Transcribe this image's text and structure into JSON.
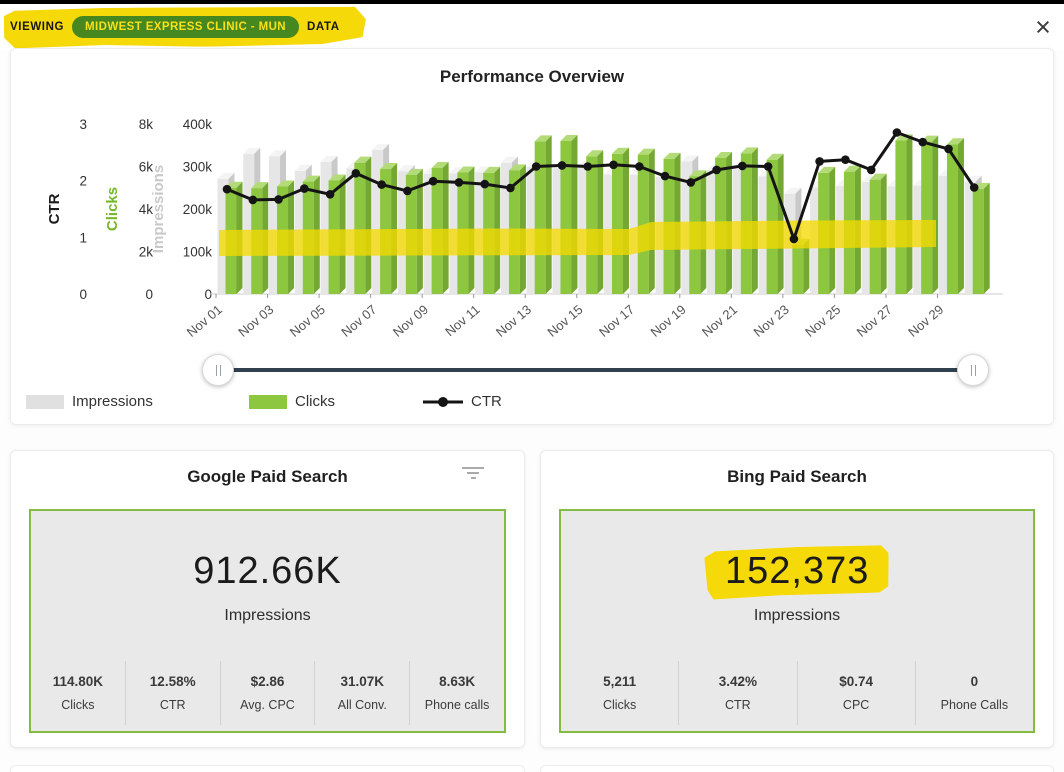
{
  "header": {
    "viewing_label": "VIEWING",
    "client_name": "MIDWEST EXPRESS CLINIC - MUN",
    "data_label": "DATA",
    "close_glyph": "×"
  },
  "colors": {
    "highlight_yellow": "#f6d908",
    "pill_green": "#47871f",
    "pill_text_yellow": "#f6e11b",
    "accent_green": "#8dc63f",
    "bar_gray": "#e6e6e6",
    "ctr_line": "#141414",
    "slider_track": "#31404e",
    "panel_border_green": "#84bb41",
    "panel_bg": "#e9e9e9"
  },
  "chart_data": {
    "type": "combo-bar-line-3d",
    "title": "Performance Overview",
    "x": [
      "Nov 01",
      "Nov 02",
      "Nov 03",
      "Nov 04",
      "Nov 05",
      "Nov 06",
      "Nov 07",
      "Nov 08",
      "Nov 09",
      "Nov 10",
      "Nov 11",
      "Nov 12",
      "Nov 13",
      "Nov 14",
      "Nov 15",
      "Nov 16",
      "Nov 17",
      "Nov 18",
      "Nov 19",
      "Nov 20",
      "Nov 21",
      "Nov 22",
      "Nov 23",
      "Nov 24",
      "Nov 25",
      "Nov 26",
      "Nov 27",
      "Nov 28",
      "Nov 29",
      "Nov 30"
    ],
    "x_label_every": 2,
    "grid": false,
    "legend_position": "bottom",
    "axes": {
      "ctr": {
        "label": "CTR",
        "range": [
          0,
          3
        ],
        "ticks": [
          "0",
          "1",
          "2",
          "3"
        ],
        "title_color": "#1a1a1a"
      },
      "clicks": {
        "label": "Clicks",
        "range": [
          0,
          8000
        ],
        "ticks": [
          "0",
          "2k",
          "4k",
          "6k",
          "8k"
        ],
        "title_color": "#76b82a"
      },
      "impressions": {
        "label": "Impressions",
        "range": [
          0,
          400000
        ],
        "ticks": [
          "0",
          "100k",
          "200k",
          "300k",
          "400k"
        ],
        "title_color": "#c9c9c9"
      }
    },
    "series": [
      {
        "name": "Impressions",
        "type": "bar",
        "axis": "impressions",
        "colors": {
          "front": "#e6e6e6",
          "side": "#c9c9c9",
          "top": "#f4f4f4"
        },
        "values": [
          271000,
          330000,
          324000,
          290000,
          311000,
          296000,
          339000,
          289000,
          283000,
          284000,
          286000,
          309000,
          299000,
          296000,
          301000,
          281000,
          280000,
          276000,
          312000,
          292000,
          294000,
          277000,
          236000,
          251000,
          254000,
          264000,
          253000,
          255000,
          278000,
          264000
        ]
      },
      {
        "name": "Clicks",
        "type": "bar",
        "axis": "clicks",
        "colors": {
          "front": "#8dc63f",
          "side": "#74a832",
          "top": "#b3dc78"
        },
        "values": [
          5000,
          4980,
          5060,
          5290,
          5340,
          6180,
          5880,
          5600,
          5930,
          5720,
          5700,
          5820,
          7180,
          7200,
          6480,
          6600,
          6560,
          6360,
          5540,
          6400,
          6620,
          6320,
          2320,
          5700,
          5760,
          5380,
          7230,
          7170,
          7050,
          4950
        ]
      },
      {
        "name": "CTR",
        "type": "line",
        "axis": "ctr",
        "color": "#141414",
        "values": [
          1.85,
          1.66,
          1.67,
          1.86,
          1.76,
          2.13,
          1.93,
          1.82,
          1.99,
          1.97,
          1.94,
          1.87,
          2.25,
          2.27,
          2.25,
          2.28,
          2.25,
          2.08,
          1.97,
          2.19,
          2.26,
          2.25,
          0.97,
          2.34,
          2.37,
          2.19,
          2.85,
          2.68,
          2.56,
          1.88
        ]
      }
    ],
    "annotations": {
      "yellow_highlight_band": "horizontal marker stroke across bars near 100k impressions level"
    }
  },
  "legend": [
    {
      "label": "Impressions",
      "color": "#e0e0e0",
      "type": "square"
    },
    {
      "label": "Clicks",
      "color": "#8dc63f",
      "type": "square"
    },
    {
      "label": "CTR",
      "color": "#141414",
      "type": "line-dot"
    }
  ],
  "cards": [
    {
      "title": "Google Paid Search",
      "big_value": "912.66K",
      "big_label": "Impressions",
      "stats": [
        {
          "value": "114.80K",
          "label": "Clicks"
        },
        {
          "value": "12.58%",
          "label": "CTR"
        },
        {
          "value": "$2.86",
          "label": "Avg. CPC"
        },
        {
          "value": "31.07K",
          "label": "All Conv."
        },
        {
          "value": "8.63K",
          "label": "Phone calls"
        }
      ]
    },
    {
      "title": "Bing Paid Search",
      "big_value": "152,373",
      "big_label": "Impressions",
      "stats": [
        {
          "value": "5,211",
          "label": "Clicks"
        },
        {
          "value": "3.42%",
          "label": "CTR"
        },
        {
          "value": "$0.74",
          "label": "CPC"
        },
        {
          "value": "0",
          "label": "Phone Calls"
        }
      ]
    }
  ]
}
